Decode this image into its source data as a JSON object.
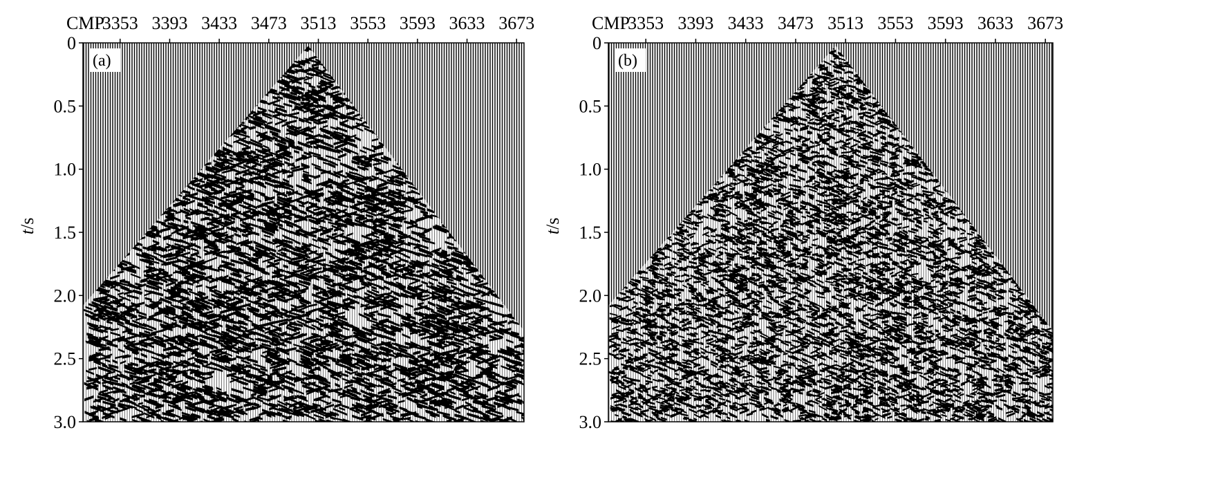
{
  "chart_data": [
    {
      "type": "seismic-wiggle",
      "panel_label": "(a)",
      "x_header": "CMP",
      "x_ticks": [
        "3353",
        "3393",
        "3433",
        "3473",
        "3513",
        "3553",
        "3593",
        "3633",
        "3673"
      ],
      "x_tick_values": [
        3353,
        3393,
        3433,
        3473,
        3513,
        3553,
        3593,
        3633,
        3673
      ],
      "xlim": [
        3323,
        3679
      ],
      "apex_cmp": 3505,
      "y_ticks": [
        "0",
        "0.5",
        "1.0",
        "1.5",
        "2.0",
        "2.5",
        "3.0"
      ],
      "y_tick_values": [
        0,
        0.5,
        1.0,
        1.5,
        2.0,
        2.5,
        3.0
      ],
      "ylim": [
        0,
        3.0
      ],
      "ylabel_italic": "t",
      "ylabel_rest": "/s",
      "y_reversed": true,
      "grid": false,
      "noise_character": "strong low-frequency linear noise"
    },
    {
      "type": "seismic-wiggle",
      "panel_label": "(b)",
      "x_header": "CMP",
      "x_ticks": [
        "3353",
        "3393",
        "3433",
        "3473",
        "3513",
        "3553",
        "3593",
        "3633",
        "3673"
      ],
      "x_tick_values": [
        3353,
        3393,
        3433,
        3473,
        3513,
        3553,
        3593,
        3633,
        3673
      ],
      "xlim": [
        3323,
        3679
      ],
      "apex_cmp": 3505,
      "y_ticks": [
        "0",
        "0.5",
        "1.0",
        "1.5",
        "2.0",
        "2.5",
        "3.0"
      ],
      "y_tick_values": [
        0,
        0.5,
        1.0,
        1.5,
        2.0,
        2.5,
        3.0
      ],
      "ylim": [
        0,
        3.0
      ],
      "ylabel_italic": "t",
      "ylabel_rest": "/s",
      "y_reversed": true,
      "grid": false,
      "noise_character": "noise attenuated, finer texture"
    }
  ]
}
